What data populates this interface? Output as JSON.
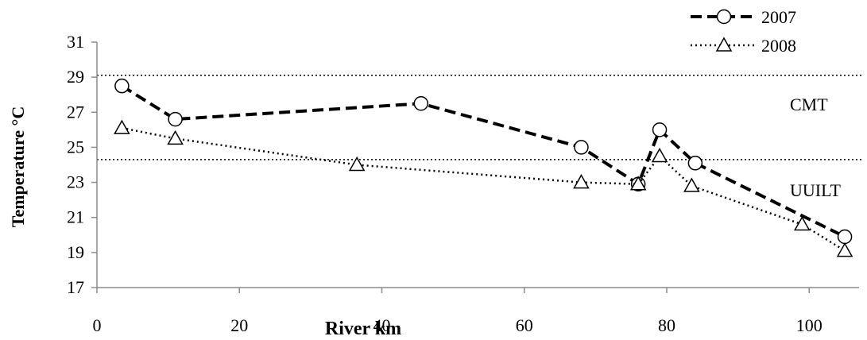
{
  "chart_data": {
    "type": "line",
    "title": "",
    "xlabel": "River km",
    "ylabel": "Temperature °C",
    "xlim": [
      0,
      107
    ],
    "ylim": [
      17,
      31
    ],
    "x_ticks": [
      0,
      20,
      40,
      60,
      80,
      100
    ],
    "y_ticks": [
      17,
      19,
      21,
      23,
      25,
      27,
      29,
      31
    ],
    "grid": false,
    "legend_position": "top-right",
    "series": [
      {
        "name": "2007",
        "style": "dashed",
        "marker": "circle",
        "color": "#000000",
        "x": [
          3.5,
          11,
          45.5,
          68,
          76,
          79,
          84,
          105
        ],
        "y": [
          28.5,
          26.6,
          27.5,
          25.0,
          22.9,
          26.0,
          24.1,
          19.9
        ]
      },
      {
        "name": "2008",
        "style": "dotted",
        "marker": "triangle",
        "color": "#000000",
        "x": [
          3.5,
          11,
          36.5,
          68,
          76,
          79,
          83.5,
          99,
          105
        ],
        "y": [
          26.1,
          25.5,
          24.0,
          23.0,
          22.9,
          24.5,
          22.8,
          20.6,
          19.1
        ]
      }
    ],
    "reference_lines": [
      {
        "label": "CMT",
        "y": 29.1
      },
      {
        "label": "UUILT",
        "y": 24.3
      }
    ]
  }
}
